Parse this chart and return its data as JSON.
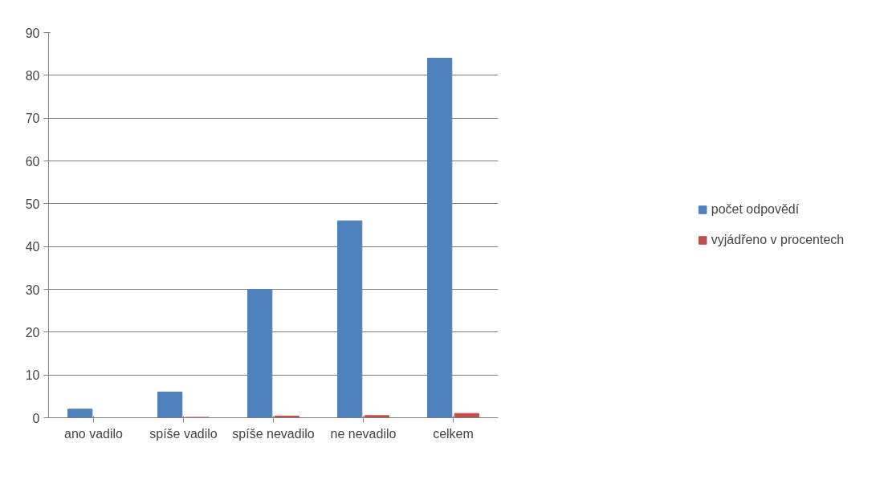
{
  "chart_data": {
    "type": "bar",
    "categories": [
      "ano vadilo",
      "spíše vadilo",
      "spíše nevadilo",
      "ne nevadilo",
      "celkem"
    ],
    "series": [
      {
        "name": "počet odpovědí",
        "color": "#4f81bd",
        "values": [
          2,
          6,
          30,
          46,
          84
        ]
      },
      {
        "name": "vyjádřeno v procentech",
        "color": "#c0504d",
        "values": [
          0,
          0.1,
          0.4,
          0.5,
          1
        ]
      }
    ],
    "ylim": [
      0,
      90
    ],
    "yticks": [
      0,
      10,
      20,
      30,
      40,
      50,
      60,
      70,
      80,
      90
    ],
    "grid": "y",
    "legend": "right"
  }
}
